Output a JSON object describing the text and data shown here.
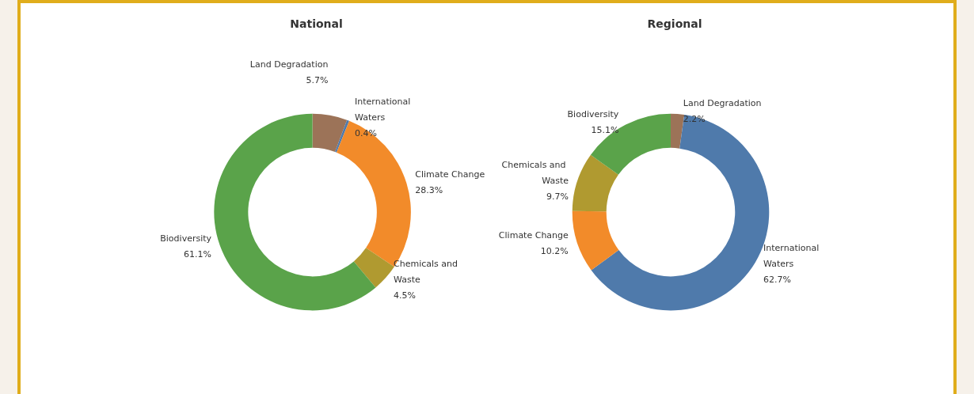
{
  "chart_data": [
    {
      "type": "donut",
      "title": "National",
      "categories": [
        "Land Degradation",
        "International Waters",
        "Climate Change",
        "Chemicals and Waste",
        "Biodiversity"
      ],
      "values": [
        5.7,
        0.4,
        28.3,
        4.5,
        61.1
      ],
      "value_labels": [
        "5.7%",
        "0.4%",
        "28.3%",
        "4.5%",
        "61.1%"
      ],
      "colors": [
        "#9c7358",
        "#4f7aab",
        "#f28b2a",
        "#b09a30",
        "#5aa34a"
      ],
      "legend": false
    },
    {
      "type": "donut",
      "title": "Regional",
      "categories": [
        "Land Degradation",
        "International Waters",
        "Climate Change",
        "Chemicals and Waste",
        "Biodiversity"
      ],
      "values": [
        2.2,
        62.7,
        10.2,
        9.7,
        15.1
      ],
      "value_labels": [
        "2.2%",
        "62.7%",
        "10.2%",
        "9.7%",
        "15.1%"
      ],
      "colors": [
        "#9c7358",
        "#4f7aab",
        "#f28b2a",
        "#b09a30",
        "#5aa34a"
      ],
      "legend": false
    }
  ]
}
